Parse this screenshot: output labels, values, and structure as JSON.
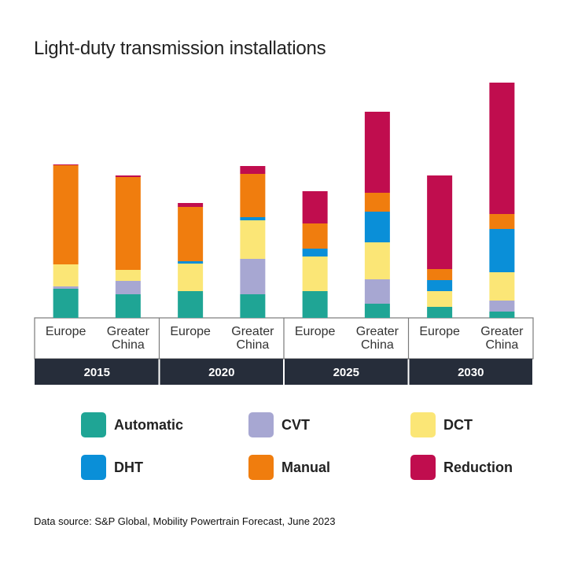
{
  "chart_data": {
    "type": "bar",
    "stacked": true,
    "title": "Light-duty transmission installations",
    "xlabel": "",
    "ylabel": "",
    "groups": [
      {
        "year": "2015",
        "categories": [
          "Europe",
          "Greater China"
        ]
      },
      {
        "year": "2020",
        "categories": [
          "Europe",
          "Greater China"
        ]
      },
      {
        "year": "2025",
        "categories": [
          "Europe",
          "Greater China"
        ]
      },
      {
        "year": "2030",
        "categories": [
          "Europe",
          "Greater China"
        ]
      }
    ],
    "categories": [
      "Europe",
      "Greater China",
      "Europe",
      "Greater China",
      "Europe",
      "Greater China",
      "Europe",
      "Greater China"
    ],
    "ylim": [
      0,
      300
    ],
    "grid": false,
    "legend_position": "bottom",
    "series": [
      {
        "name": "Automatic",
        "color": "#1fa595",
        "values": [
          37,
          30,
          34,
          30,
          34,
          18,
          14,
          8
        ]
      },
      {
        "name": "CVT",
        "color": "#a7a7d2",
        "values": [
          3,
          17,
          0,
          45,
          0,
          31,
          0,
          14
        ]
      },
      {
        "name": "DCT",
        "color": "#fbe676",
        "values": [
          28,
          14,
          35,
          49,
          44,
          47,
          20,
          36
        ]
      },
      {
        "name": "DHT",
        "color": "#0a8fd8",
        "values": [
          0,
          0,
          3,
          4,
          10,
          39,
          14,
          55
        ]
      },
      {
        "name": "Manual",
        "color": "#f07d0e",
        "values": [
          126,
          118,
          69,
          55,
          32,
          24,
          14,
          19
        ]
      },
      {
        "name": "Reduction",
        "color": "#c00d4e",
        "values": [
          1,
          2,
          5,
          10,
          41,
          103,
          119,
          167
        ]
      }
    ]
  },
  "legend": [
    {
      "label": "Automatic",
      "color": "#1fa595"
    },
    {
      "label": "CVT",
      "color": "#a7a7d2"
    },
    {
      "label": "DCT",
      "color": "#fbe676"
    },
    {
      "label": "DHT",
      "color": "#0a8fd8"
    },
    {
      "label": "Manual",
      "color": "#f07d0e"
    },
    {
      "label": "Reduction",
      "color": "#c00d4e"
    }
  ],
  "source": "Data source: S&P Global, Mobility Powertrain Forecast, June 2023",
  "colors": {
    "year_band": "#262d3a",
    "year_text": "#ffffff",
    "axis_box": "#7a7a7a"
  }
}
